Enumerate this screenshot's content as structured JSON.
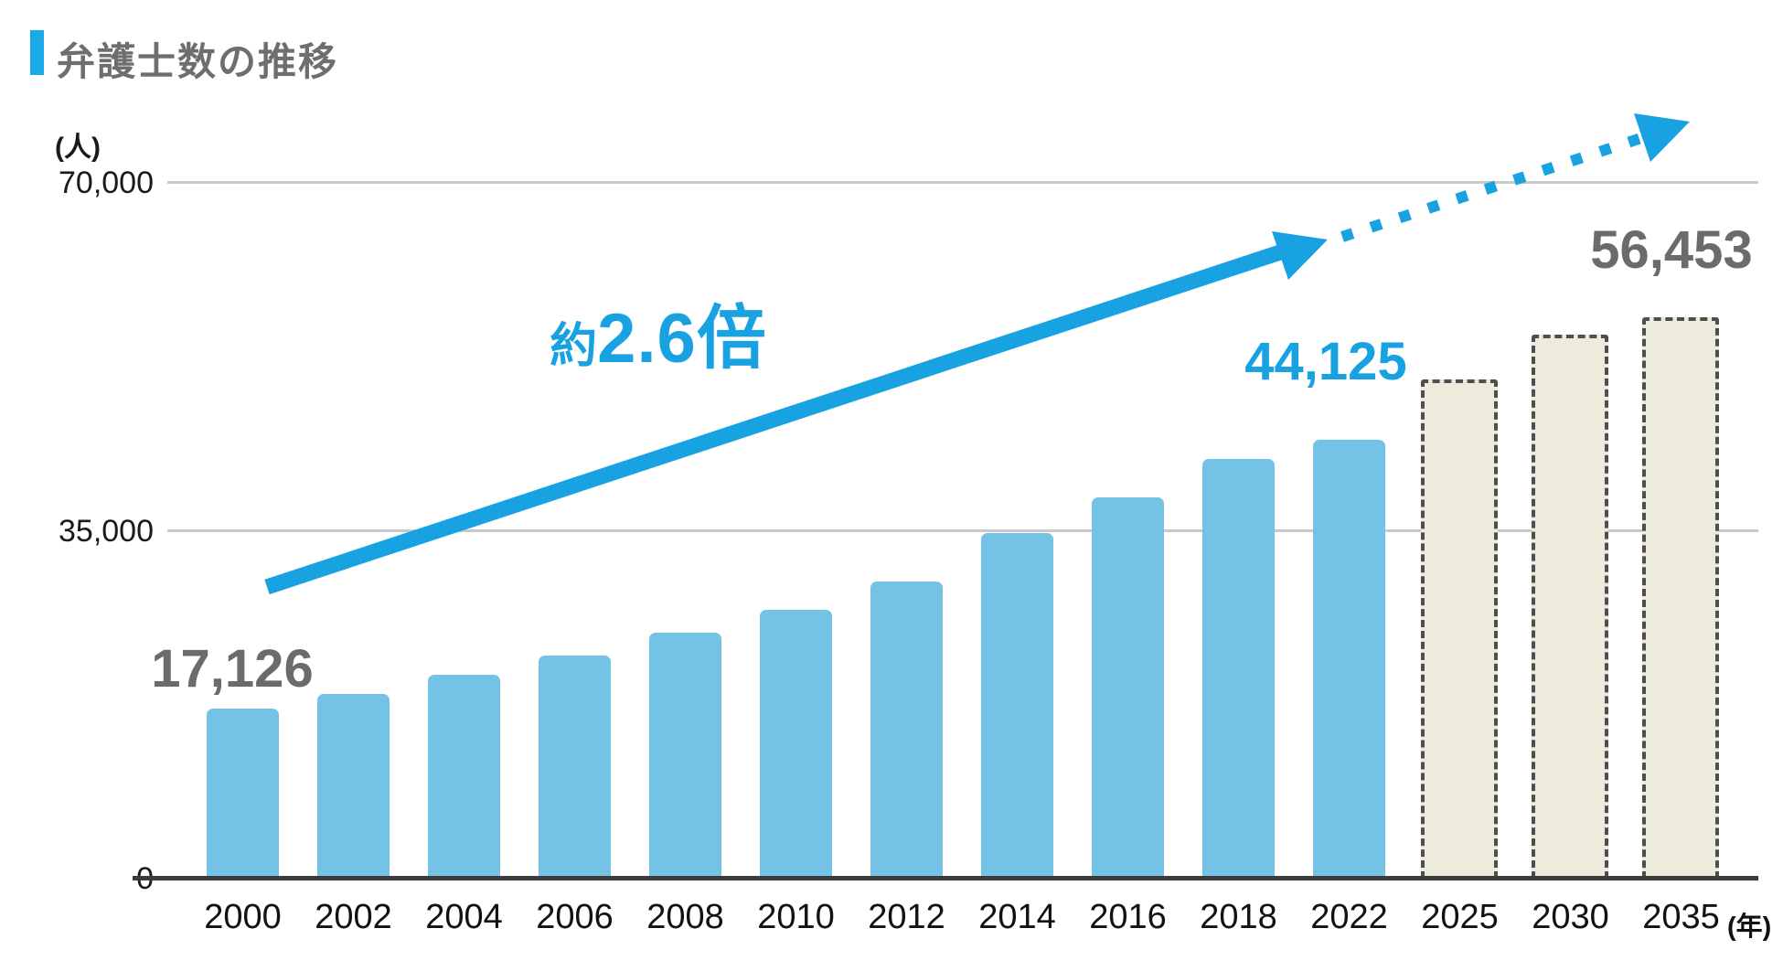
{
  "header": {
    "title": "弁護士数の推移",
    "marker_color": "#1CA9E8"
  },
  "chart_data": {
    "type": "bar",
    "title": "弁護士数の推移",
    "unit_label": "(人)",
    "x_axis_suffix": "(年)",
    "y_ticks": [
      "70,000",
      "35,000",
      "0"
    ],
    "ylim": [
      0,
      70000
    ],
    "grid_values": [
      70000,
      35000
    ],
    "grid": "horizontal",
    "categories": [
      "2000",
      "2002",
      "2004",
      "2006",
      "2008",
      "2010",
      "2012",
      "2014",
      "2016",
      "2018",
      "2022",
      "2025",
      "2030",
      "2035"
    ],
    "values": [
      17126,
      18600,
      20500,
      22400,
      24700,
      27000,
      29900,
      34800,
      38400,
      42200,
      44125,
      50200,
      54700,
      56453
    ],
    "projected_from_index": 11,
    "projected_categories": [
      "2025",
      "2030",
      "2035"
    ],
    "data_labels": [
      {
        "category": "2000",
        "text": "17,126",
        "style": "gray"
      },
      {
        "category": "2022",
        "text": "44,125",
        "style": "blue"
      },
      {
        "category": "2035",
        "text": "56,453",
        "style": "gray"
      }
    ],
    "growth_annotation": {
      "prefix": "約",
      "value": "2.6倍"
    },
    "colors": {
      "bar": "#74C2E6",
      "projected_fill": "#EDEBDC",
      "projected_border": "#4E4E4E",
      "arrow": "#18A2E2",
      "accent": "#1CA9E8",
      "title_text": "#6E6E6E",
      "callout_gray": "#6B6B6B",
      "grid": "#C9C9C9",
      "axis": "#3C3C3C",
      "tick_text": "#1A1A1A"
    }
  }
}
